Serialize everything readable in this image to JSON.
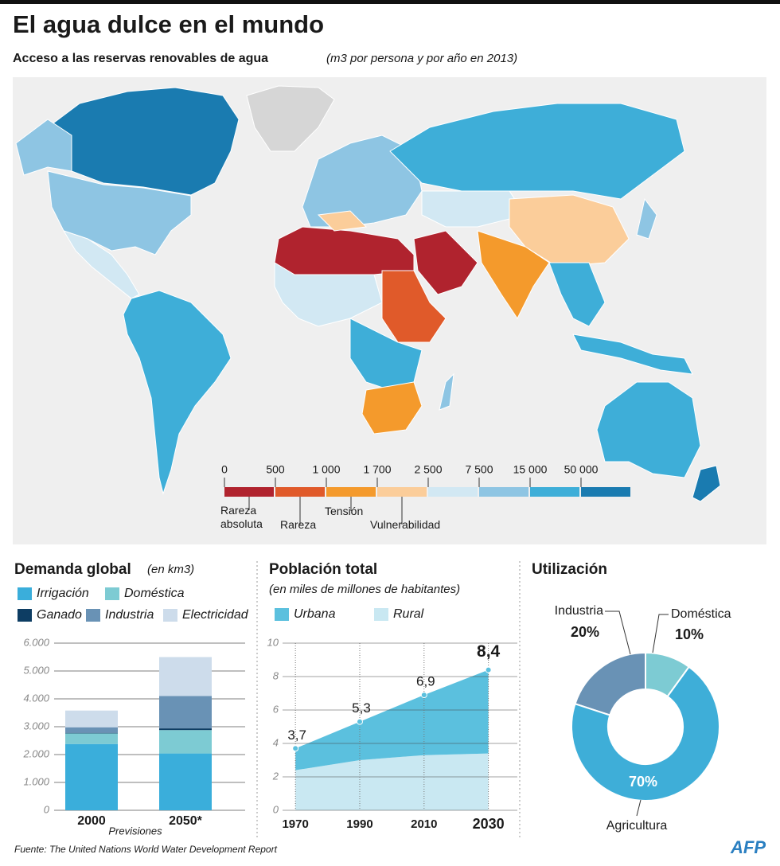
{
  "title": "El agua dulce en el mundo",
  "subtitle": "Acceso a las reservas renovables de agua",
  "subtitle_note": "(m3 por persona y por año en 2013)",
  "map_legend": {
    "ticks": [
      0,
      500,
      {
        "value": 1000,
        "label": "1 000"
      },
      {
        "value": 1700,
        "label": "1 700"
      },
      {
        "value": 2500,
        "label": "2 500"
      },
      {
        "value": 7500,
        "label": "7 500"
      },
      {
        "value": 15000,
        "label": "15 000"
      },
      {
        "value": 50000,
        "label": "50 000"
      }
    ],
    "colors": [
      "#b0232e",
      "#e05a2a",
      "#f49a2c",
      "#fbcd9a",
      "#d2e8f3",
      "#8ec5e3",
      "#3eaed8",
      "#1a7bb0"
    ],
    "classes": [
      "Rareza absoluta",
      "Rareza",
      "Tensión",
      "Vulnerabilidad"
    ]
  },
  "chart_data": [
    {
      "type": "stacked-bar",
      "title": "Demanda global",
      "subtitle": "(en km3)",
      "categories": [
        "2000",
        "2050*"
      ],
      "note": "Previsiones",
      "series": [
        {
          "name": "Irrigación",
          "color": "#3aaedb",
          "values": [
            2380,
            2040
          ]
        },
        {
          "name": "Doméstica",
          "color": "#7dcbd3",
          "values": [
            380,
            840
          ]
        },
        {
          "name": "Ganado",
          "color": "#0d3d63",
          "values": [
            20,
            60
          ]
        },
        {
          "name": "Industria",
          "color": "#6992b5",
          "values": [
            200,
            1160
          ]
        },
        {
          "name": "Electricidad",
          "color": "#cddceb",
          "values": [
            600,
            1400
          ]
        }
      ],
      "ylim": [
        0,
        6000
      ],
      "yticks": [
        0,
        {
          "value": 1000,
          "label": "1.000"
        },
        {
          "value": 2000,
          "label": "2.000"
        },
        {
          "value": 3000,
          "label": "3.000"
        },
        {
          "value": 4000,
          "label": "4.000"
        },
        {
          "value": 5000,
          "label": "5.000"
        },
        {
          "value": 6000,
          "label": "6.000"
        }
      ],
      "grid": true
    },
    {
      "type": "stacked-area",
      "title": "Población total",
      "subtitle": "(en miles de millones de habitantes)",
      "x": [
        1970,
        1990,
        2010,
        2030
      ],
      "series": [
        {
          "name": "Rural",
          "color": "#c9e8f2",
          "values": [
            2.4,
            3.0,
            3.3,
            3.4
          ]
        },
        {
          "name": "Urbana",
          "color": "#5bc0de",
          "values": [
            1.3,
            2.3,
            3.6,
            5.0
          ]
        }
      ],
      "totals": [
        3.7,
        5.3,
        6.9,
        8.4
      ],
      "total_labels": [
        "3,7",
        "5,3",
        "6,9",
        "8,4"
      ],
      "xlim": [
        1966,
        2039
      ],
      "xticks": [
        1970,
        1990,
        2010,
        2030
      ],
      "ylim": [
        0,
        10
      ],
      "yticks": [
        0,
        2,
        4,
        6,
        8,
        10
      ],
      "grid": true
    },
    {
      "type": "donut",
      "title": "Utilización",
      "categories": [
        "Industria",
        "Doméstica",
        "Agricultura"
      ],
      "values": [
        20,
        10,
        70
      ],
      "value_labels": [
        "20%",
        "10%",
        "70%"
      ],
      "colors": [
        "#6992b5",
        "#7dcbd3",
        "#3eaed8"
      ]
    }
  ],
  "source": "Fuente: The United Nations World Water Development Report",
  "logo": "AFP"
}
